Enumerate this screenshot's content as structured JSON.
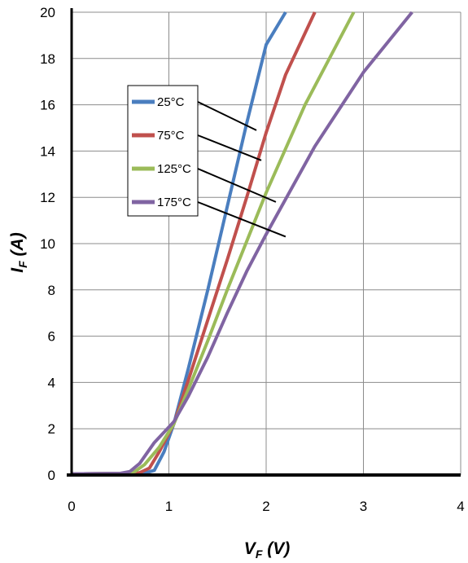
{
  "chart_data": {
    "type": "line",
    "xlabel": {
      "main": "V",
      "sub": "F",
      "unit": " (V)"
    },
    "ylabel": {
      "main": "I",
      "sub": "F",
      "unit": " (A)"
    },
    "xlim": [
      0,
      4
    ],
    "ylim": [
      0,
      20
    ],
    "x_ticks": [
      "0",
      "1",
      "2",
      "3",
      "4"
    ],
    "y_ticks": [
      "0",
      "2",
      "4",
      "6",
      "8",
      "10",
      "12",
      "14",
      "16",
      "18",
      "20"
    ],
    "grid": true,
    "legend_position": "upper-left, inside plot",
    "series": [
      {
        "name": "25°C",
        "color": "#4a7ebf",
        "points": [
          [
            0,
            0.05
          ],
          [
            0.6,
            0.07
          ],
          [
            0.75,
            0.08
          ],
          [
            0.85,
            0.2
          ],
          [
            0.95,
            1.0
          ],
          [
            1.05,
            2.2
          ],
          [
            1.2,
            4.6
          ],
          [
            1.4,
            8.0
          ],
          [
            1.6,
            11.6
          ],
          [
            1.8,
            15.2
          ],
          [
            2.0,
            18.6
          ],
          [
            2.2,
            20
          ]
        ],
        "leader_to": [
          1.9,
          14.9
        ]
      },
      {
        "name": "75°C",
        "color": "#c0504d",
        "points": [
          [
            0,
            0.05
          ],
          [
            0.6,
            0.07
          ],
          [
            0.7,
            0.1
          ],
          [
            0.8,
            0.3
          ],
          [
            0.9,
            1.0
          ],
          [
            1.05,
            2.2
          ],
          [
            1.2,
            4.1
          ],
          [
            1.4,
            6.7
          ],
          [
            1.6,
            9.3
          ],
          [
            1.8,
            12.0
          ],
          [
            2.0,
            14.8
          ],
          [
            2.2,
            17.3
          ],
          [
            2.5,
            20
          ]
        ],
        "leader_to": [
          1.95,
          13.6
        ]
      },
      {
        "name": "125°C",
        "color": "#9bbb59",
        "points": [
          [
            0,
            0.05
          ],
          [
            0.55,
            0.07
          ],
          [
            0.65,
            0.15
          ],
          [
            0.75,
            0.45
          ],
          [
            0.9,
            1.2
          ],
          [
            1.05,
            2.2
          ],
          [
            1.2,
            3.7
          ],
          [
            1.4,
            5.8
          ],
          [
            1.6,
            8.0
          ],
          [
            1.8,
            10.1
          ],
          [
            2.0,
            12.2
          ],
          [
            2.4,
            16.0
          ],
          [
            2.9,
            20
          ]
        ],
        "leader_to": [
          2.1,
          11.8
        ]
      },
      {
        "name": "175°C",
        "color": "#8064a2",
        "points": [
          [
            0,
            0.05
          ],
          [
            0.5,
            0.07
          ],
          [
            0.6,
            0.15
          ],
          [
            0.7,
            0.5
          ],
          [
            0.85,
            1.4
          ],
          [
            1.05,
            2.3
          ],
          [
            1.2,
            3.4
          ],
          [
            1.4,
            5.1
          ],
          [
            1.6,
            7.0
          ],
          [
            1.8,
            8.8
          ],
          [
            2.0,
            10.4
          ],
          [
            2.5,
            14.2
          ],
          [
            3.0,
            17.4
          ],
          [
            3.5,
            20
          ]
        ],
        "leader_to": [
          2.2,
          10.3
        ]
      }
    ]
  }
}
